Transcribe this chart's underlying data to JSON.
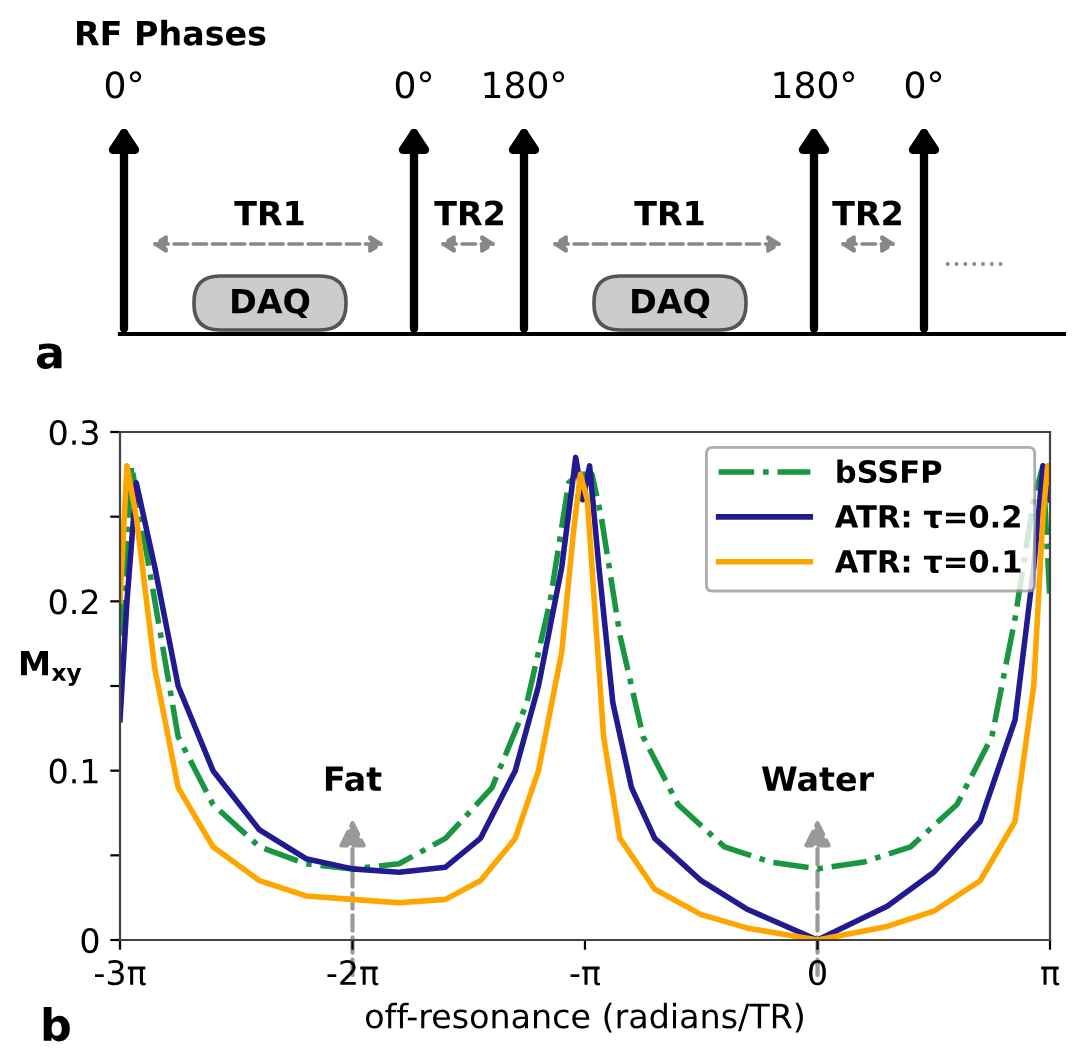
{
  "chart_data": [
    {
      "type": "other",
      "title": "RF Phases",
      "annotations": [
        "0°",
        "0°",
        "180°",
        "180°",
        "0°",
        "TR1",
        "TR2",
        "TR1",
        "TR2",
        "DAQ",
        "DAQ",
        "a"
      ]
    },
    {
      "type": "line",
      "xlabel": "off-resonance (radians/TR)",
      "ylabel": "M$_{xy}$",
      "xlim": [
        -9.425,
        3.142
      ],
      "xticks": [
        {
          "value": -9.425,
          "label": "-3π"
        },
        {
          "value": -6.283,
          "label": "-2π"
        },
        {
          "value": -3.142,
          "label": "-π"
        },
        0,
        {
          "value": 3.142,
          "label": "π"
        }
      ],
      "ylim": [
        0,
        0.3
      ],
      "yticks": [
        0,
        {
          "value": 0.05,
          "label": null
        },
        0.1,
        {
          "value": 0.15,
          "label": null
        },
        0.2,
        {
          "value": 0.25,
          "label": null
        },
        0.3
      ],
      "grid": false,
      "legend": "top right",
      "line_style": "solid",
      "marker": "none",
      "annotations": [
        "Fat",
        "Water",
        "b"
      ],
      "series": [
        {
          "name": "bSSFP",
          "color": "#1a9641",
          "line_style": "dashdot",
          "x": [
            -9.425,
            -9.268,
            -8.954,
            -8.639,
            -8.168,
            -7.54,
            -6.912,
            -6.283,
            -5.655,
            -5.027,
            -4.398,
            -3.927,
            -3.613,
            -3.362,
            -3.236,
            -3.047,
            -2.922,
            -2.67,
            -2.356,
            -1.885,
            -1.257,
            -0.628,
            0,
            0.628,
            1.257,
            1.885,
            2.356,
            2.67,
            2.922,
            3.047,
            3.142
          ],
          "values": [
            0.18,
            0.28,
            0.2,
            0.12,
            0.08,
            0.055,
            0.045,
            0.042,
            0.045,
            0.06,
            0.09,
            0.14,
            0.2,
            0.27,
            0.275,
            0.275,
            0.25,
            0.18,
            0.12,
            0.08,
            0.055,
            0.046,
            0.042,
            0.046,
            0.055,
            0.08,
            0.12,
            0.19,
            0.26,
            0.28,
            0.2
          ]
        },
        {
          "name": "ATR: τ=0.2",
          "color": "#221b8f",
          "x": [
            -9.425,
            -9.331,
            -9.205,
            -8.954,
            -8.639,
            -8.168,
            -7.54,
            -6.912,
            -6.283,
            -5.655,
            -5.027,
            -4.555,
            -4.084,
            -3.77,
            -3.456,
            -3.267,
            -3.173,
            -3.079,
            -2.953,
            -2.765,
            -2.513,
            -2.199,
            -1.571,
            -0.942,
            0,
            0.942,
            1.571,
            2.199,
            2.67,
            2.922,
            3.047,
            3.142
          ],
          "values": [
            0.13,
            0.2,
            0.27,
            0.22,
            0.15,
            0.1,
            0.065,
            0.048,
            0.042,
            0.04,
            0.043,
            0.06,
            0.1,
            0.15,
            0.22,
            0.285,
            0.26,
            0.28,
            0.22,
            0.14,
            0.09,
            0.06,
            0.035,
            0.018,
            0,
            0.02,
            0.04,
            0.07,
            0.13,
            0.22,
            0.28,
            0.26
          ]
        },
        {
          "name": "ATR: τ=0.1",
          "color": "#ffa500",
          "x": [
            -9.425,
            -9.331,
            -9.205,
            -8.954,
            -8.639,
            -8.168,
            -7.54,
            -6.912,
            -6.283,
            -5.655,
            -5.027,
            -4.555,
            -4.084,
            -3.77,
            -3.456,
            -3.299,
            -3.204,
            -3.11,
            -3.016,
            -2.89,
            -2.67,
            -2.199,
            -1.571,
            -0.942,
            0,
            0.942,
            1.571,
            2.199,
            2.67,
            2.922,
            3.047,
            3.11,
            3.142
          ],
          "values": [
            0.2,
            0.28,
            0.25,
            0.16,
            0.09,
            0.055,
            0.035,
            0.026,
            0.024,
            0.022,
            0.024,
            0.035,
            0.06,
            0.1,
            0.17,
            0.24,
            0.275,
            0.26,
            0.2,
            0.12,
            0.06,
            0.03,
            0.015,
            0.007,
            0,
            0.008,
            0.017,
            0.035,
            0.07,
            0.15,
            0.25,
            0.28,
            0.27
          ]
        }
      ]
    }
  ]
}
